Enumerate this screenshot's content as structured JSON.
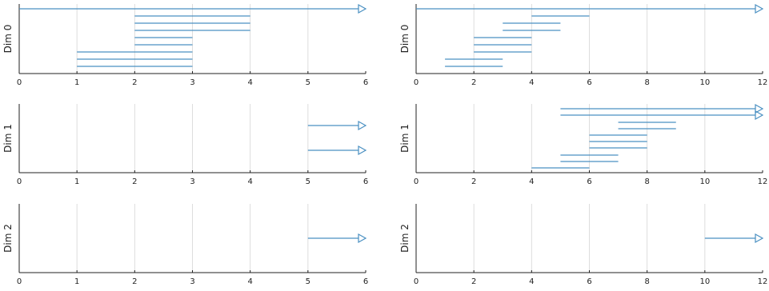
{
  "chart_data": [
    {
      "type": "interval",
      "ylabel": "Dim 0",
      "xlim": [
        0,
        6
      ],
      "xticks": [
        "0",
        "1",
        "2",
        "3",
        "4",
        "5",
        "6"
      ],
      "grid": "vertical",
      "intervals": [
        {
          "start": 0,
          "end": 6,
          "open_end": true
        },
        {
          "start": 2,
          "end": 4
        },
        {
          "start": 2,
          "end": 4
        },
        {
          "start": 2,
          "end": 4
        },
        {
          "start": 2,
          "end": 3
        },
        {
          "start": 2,
          "end": 3
        },
        {
          "start": 1,
          "end": 3
        },
        {
          "start": 1,
          "end": 3
        },
        {
          "start": 1,
          "end": 3
        }
      ]
    },
    {
      "type": "interval",
      "ylabel": "Dim 0",
      "xlim": [
        0,
        12
      ],
      "xticks": [
        "0",
        "2",
        "4",
        "6",
        "8",
        "10",
        "12"
      ],
      "grid": "vertical",
      "intervals": [
        {
          "start": 0,
          "end": 12,
          "open_end": true
        },
        {
          "start": 4,
          "end": 6
        },
        {
          "start": 3,
          "end": 5
        },
        {
          "start": 3,
          "end": 5
        },
        {
          "start": 2,
          "end": 4
        },
        {
          "start": 2,
          "end": 4
        },
        {
          "start": 2,
          "end": 4
        },
        {
          "start": 1,
          "end": 3
        },
        {
          "start": 1,
          "end": 3
        }
      ]
    },
    {
      "type": "interval",
      "ylabel": "Dim 1",
      "xlim": [
        0,
        6
      ],
      "xticks": [
        "0",
        "1",
        "2",
        "3",
        "4",
        "5",
        "6"
      ],
      "grid": "vertical",
      "intervals": [
        {
          "start": 5,
          "end": 6,
          "open_end": true
        },
        {
          "start": 5,
          "end": 6,
          "open_end": true
        }
      ]
    },
    {
      "type": "interval",
      "ylabel": "Dim 1",
      "xlim": [
        0,
        12
      ],
      "xticks": [
        "0",
        "2",
        "4",
        "6",
        "8",
        "10",
        "12"
      ],
      "grid": "vertical",
      "intervals": [
        {
          "start": 5,
          "end": 12,
          "open_end": true
        },
        {
          "start": 5,
          "end": 12,
          "open_end": true
        },
        {
          "start": 7,
          "end": 9
        },
        {
          "start": 7,
          "end": 9
        },
        {
          "start": 6,
          "end": 8
        },
        {
          "start": 6,
          "end": 8
        },
        {
          "start": 6,
          "end": 8
        },
        {
          "start": 5,
          "end": 7
        },
        {
          "start": 5,
          "end": 7
        },
        {
          "start": 4,
          "end": 6
        }
      ]
    },
    {
      "type": "interval",
      "ylabel": "Dim 2",
      "xlim": [
        0,
        6
      ],
      "xticks": [
        "0",
        "1",
        "2",
        "3",
        "4",
        "5",
        "6"
      ],
      "grid": "vertical",
      "intervals": [
        {
          "start": 5,
          "end": 6,
          "open_end": true
        }
      ]
    },
    {
      "type": "interval",
      "ylabel": "Dim 2",
      "xlim": [
        0,
        12
      ],
      "xticks": [
        "0",
        "2",
        "4",
        "6",
        "8",
        "10",
        "12"
      ],
      "grid": "vertical",
      "intervals": [
        {
          "start": 10,
          "end": 12,
          "open_end": true
        }
      ]
    }
  ],
  "colors": {
    "interval": "#4a90c2",
    "axis": "#222222",
    "grid": "#dddddd"
  }
}
